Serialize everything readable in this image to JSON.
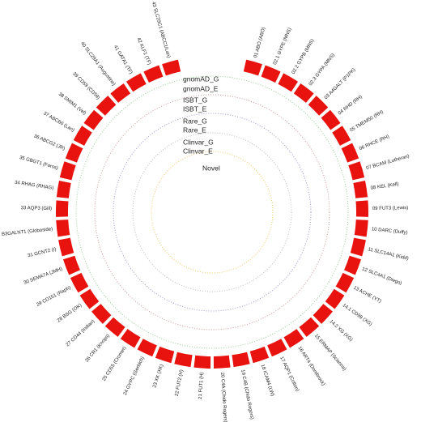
{
  "segments": [
    "01 ABO (ABO)",
    "02.1 GYPE (MNS)",
    "02.2 GYPB (MNS)",
    "02.3 GYPA (MNS)",
    "03 A4GALT (P1PK)",
    "04 RHD (RH)",
    "05 TMEM50 (RH)",
    "06 RHCE (RH)",
    "07 BCAM (Lutheran)",
    "08 KEL (Kell)",
    "09 FUT3 (Lewis)",
    "10 DARC (Duffy)",
    "11 SLC14A1 (Kidd)",
    "12 SLC4A1 (Diego)",
    "13 ACHE (YT)",
    "14.1 CD99 (XG)",
    "14.2 XG (XG)",
    "15 ERMAP (Scianna)",
    "16 ART4 (Dombrock)",
    "17 AQP1 (Colton)",
    "18 ICAM4 (LW)",
    "19 C4B (Chido Rogers)",
    "20 C4A (Chido Rogers)",
    "21 FUT1 (H)",
    "22 FUT2 (H)",
    "23 XK (XK)",
    "24 GYPC (Gerbich)",
    "25 CD55 (Cromer)",
    "26 CR1 (Knops)",
    "27 CD44 (Indian)",
    "28 BSG (OK)",
    "29 CD151 (Raph)",
    "30 SEMA7A (JMH)",
    "31 GCNT2 (I)",
    "32 B3GALNT1 (Globoside)",
    "33 AQP3 (Gill)",
    "34 RHAG (RHAG)",
    "35 GBGT1 (Forss)",
    "36 ABCG2 (JR)",
    "37 ABCB6 (Lan)",
    "38 SMIM1 (Vel)",
    "39 CD59 (CD59)",
    "40 SLC29A1 (Augustine)",
    "41 GATA1 (TF)",
    "42 KLF1 (TF)",
    "43 SLC29C1 (ABCC1/Lan)"
  ],
  "tracks": [
    "gnomAD_G",
    "gnomAD_E",
    "ISBT_G",
    "ISBT_E",
    "Rare_G",
    "Rare_E",
    "Clinvar_G",
    "Clinvar_E",
    "Novel"
  ]
}
